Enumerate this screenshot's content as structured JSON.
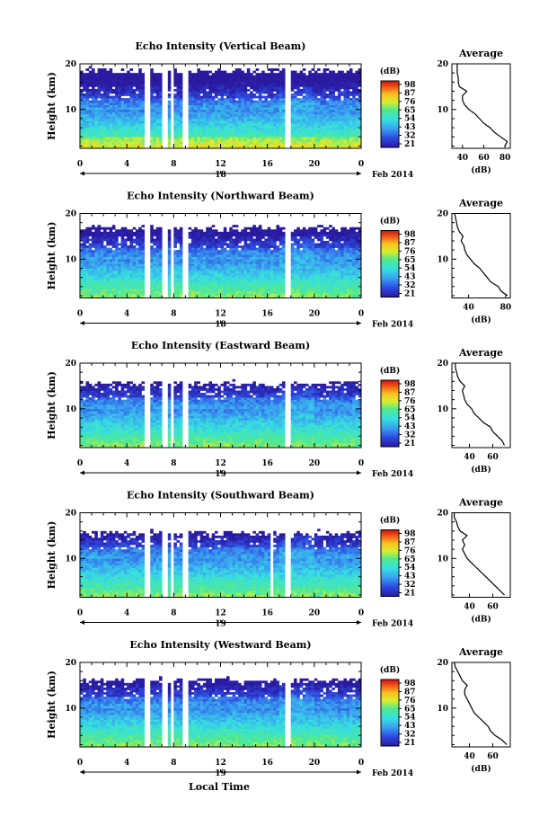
{
  "figure": {
    "x_label": "Local Time",
    "date_label": "Feb 2014",
    "profile_title": "Average",
    "profile_xlabel": "(dB)",
    "colorbar_unit": "(dB)"
  },
  "chart_data": [
    {
      "type": "heatmap",
      "title": "Echo Intensity (Vertical Beam)",
      "ylabel": "Height (km)",
      "xlabel": "Local Time",
      "x_ticks": [
        "0",
        "4",
        "8",
        "12",
        "16",
        "20",
        "0"
      ],
      "xlim": [
        0,
        24
      ],
      "ylim": [
        1.5,
        20
      ],
      "y_ticks": [
        "10",
        "20"
      ],
      "date_ticks": [
        "18"
      ],
      "date_unit": "Feb 2014",
      "colorbar": {
        "unit": "(dB)",
        "labels": [
          "98",
          "87",
          "76",
          "65",
          "54",
          "43",
          "32",
          "21"
        ]
      },
      "gaps_hours": [
        [
          5.6,
          6.0
        ],
        [
          7.1,
          7.5
        ],
        [
          7.7,
          8.1
        ],
        [
          8.8,
          9.2
        ],
        [
          17.6,
          17.9
        ]
      ],
      "profile": {
        "title": "Average",
        "xlabel": "(dB)",
        "x_ticks": [
          "40",
          "60",
          "80"
        ],
        "xlim": [
          30,
          85
        ],
        "ylim": [
          1.5,
          20
        ],
        "height_km": [
          2,
          3,
          4,
          5,
          6,
          7,
          8,
          9,
          10,
          11,
          12,
          13,
          14,
          15,
          16,
          17,
          18,
          19,
          20
        ],
        "value_db": [
          80,
          82,
          76,
          70,
          66,
          60,
          56,
          52,
          46,
          42,
          40,
          40,
          44,
          37,
          36,
          36,
          35,
          35,
          35
        ]
      }
    },
    {
      "type": "heatmap",
      "title": "Echo Intensity (Northward Beam)",
      "ylabel": "Height (km)",
      "xlabel": "Local Time",
      "x_ticks": [
        "0",
        "4",
        "8",
        "12",
        "16",
        "20",
        "0"
      ],
      "xlim": [
        0,
        24
      ],
      "ylim": [
        1.5,
        20
      ],
      "y_ticks": [
        "10",
        "20"
      ],
      "date_ticks": [
        "18"
      ],
      "date_unit": "Feb 2014",
      "colorbar": {
        "unit": "(dB)",
        "labels": [
          "98",
          "87",
          "76",
          "65",
          "54",
          "43",
          "32",
          "21"
        ]
      },
      "gaps_hours": [
        [
          5.6,
          6.0
        ],
        [
          7.1,
          7.5
        ],
        [
          7.7,
          8.1
        ],
        [
          8.8,
          9.2
        ],
        [
          17.6,
          17.9
        ]
      ],
      "profile": {
        "title": "Average",
        "xlabel": "(dB)",
        "x_ticks": [
          "40",
          "80"
        ],
        "xlim": [
          22,
          85
        ],
        "ylim": [
          1.5,
          20
        ],
        "height_km": [
          2,
          3,
          4,
          5,
          6,
          7,
          8,
          9,
          10,
          11,
          12,
          13,
          14,
          15,
          16,
          17,
          18,
          19,
          20
        ],
        "value_db": [
          82,
          75,
          72,
          64,
          60,
          56,
          52,
          46,
          42,
          38,
          36,
          35,
          32,
          34,
          30,
          28,
          27,
          26,
          25
        ]
      }
    },
    {
      "type": "heatmap",
      "title": "Echo Intensity (Eastward Beam)",
      "ylabel": "Height (km)",
      "xlabel": "Local Time",
      "x_ticks": [
        "0",
        "4",
        "8",
        "12",
        "16",
        "20",
        "0"
      ],
      "xlim": [
        0,
        24
      ],
      "ylim": [
        1.5,
        20
      ],
      "y_ticks": [
        "10",
        "20"
      ],
      "date_ticks": [
        "19"
      ],
      "date_unit": "Feb 2014",
      "colorbar": {
        "unit": "(dB)",
        "labels": [
          "98",
          "87",
          "76",
          "65",
          "54",
          "43",
          "32",
          "21"
        ]
      },
      "gaps_hours": [
        [
          5.6,
          6.0
        ],
        [
          7.1,
          7.5
        ],
        [
          7.7,
          8.1
        ],
        [
          8.8,
          9.2
        ],
        [
          17.6,
          17.9
        ]
      ],
      "profile": {
        "title": "Average",
        "xlabel": "(dB)",
        "x_ticks": [
          "40",
          "60"
        ],
        "xlim": [
          25,
          75
        ],
        "ylim": [
          1.5,
          20
        ],
        "height_km": [
          2,
          3,
          4,
          5,
          6,
          7,
          8,
          9,
          10,
          11,
          12,
          13,
          14,
          15,
          16,
          17,
          18,
          19,
          20
        ],
        "value_db": [
          70,
          68,
          64,
          60,
          58,
          52,
          48,
          44,
          42,
          38,
          36,
          35,
          34,
          36,
          32,
          30,
          29,
          28,
          28
        ]
      }
    },
    {
      "type": "heatmap",
      "title": "Echo Intensity (Southward Beam)",
      "ylabel": "Height (km)",
      "xlabel": "Local Time",
      "x_ticks": [
        "0",
        "4",
        "8",
        "12",
        "16",
        "20",
        "0"
      ],
      "xlim": [
        0,
        24
      ],
      "ylim": [
        1.5,
        20
      ],
      "y_ticks": [
        "10",
        "20"
      ],
      "date_ticks": [
        "19"
      ],
      "date_unit": "Feb 2014",
      "colorbar": {
        "unit": "(dB)",
        "labels": [
          "98",
          "87",
          "76",
          "65",
          "54",
          "43",
          "32",
          "21"
        ]
      },
      "gaps_hours": [
        [
          5.6,
          6.0
        ],
        [
          7.1,
          7.5
        ],
        [
          7.7,
          8.1
        ],
        [
          8.8,
          9.2
        ],
        [
          16.2,
          16.4
        ],
        [
          17.6,
          17.9
        ]
      ],
      "profile": {
        "title": "Average",
        "xlabel": "(dB)",
        "x_ticks": [
          "40",
          "60"
        ],
        "xlim": [
          25,
          75
        ],
        "ylim": [
          1.5,
          20
        ],
        "height_km": [
          2,
          3,
          4,
          5,
          6,
          7,
          8,
          9,
          10,
          11,
          12,
          13,
          14,
          15,
          16,
          17,
          18,
          19,
          20
        ],
        "value_db": [
          70,
          66,
          62,
          58,
          54,
          50,
          46,
          42,
          38,
          36,
          34,
          36,
          34,
          38,
          32,
          30,
          29,
          27,
          27
        ]
      }
    },
    {
      "type": "heatmap",
      "title": "Echo Intensity (Westward Beam)",
      "ylabel": "Height (km)",
      "xlabel": "Local Time",
      "x_ticks": [
        "0",
        "4",
        "8",
        "12",
        "16",
        "20",
        "0"
      ],
      "xlim": [
        0,
        24
      ],
      "ylim": [
        1.5,
        20
      ],
      "y_ticks": [
        "10",
        "20"
      ],
      "date_ticks": [
        "19"
      ],
      "date_unit": "Feb 2014",
      "colorbar": {
        "unit": "(dB)",
        "labels": [
          "98",
          "87",
          "76",
          "65",
          "54",
          "43",
          "32",
          "21"
        ]
      },
      "gaps_hours": [
        [
          5.6,
          6.0
        ],
        [
          7.1,
          7.5
        ],
        [
          7.7,
          8.1
        ],
        [
          8.8,
          9.2
        ],
        [
          17.6,
          17.9
        ]
      ],
      "profile": {
        "title": "Average",
        "xlabel": "(dB)",
        "x_ticks": [
          "40",
          "60"
        ],
        "xlim": [
          25,
          75
        ],
        "ylim": [
          1.5,
          20
        ],
        "height_km": [
          2,
          3,
          4,
          5,
          6,
          7,
          8,
          9,
          10,
          11,
          12,
          13,
          14,
          15,
          16,
          17,
          18,
          19,
          20
        ],
        "value_db": [
          72,
          68,
          62,
          58,
          56,
          52,
          48,
          44,
          42,
          40,
          38,
          36,
          36,
          38,
          34,
          32,
          30,
          28,
          27
        ]
      }
    }
  ]
}
